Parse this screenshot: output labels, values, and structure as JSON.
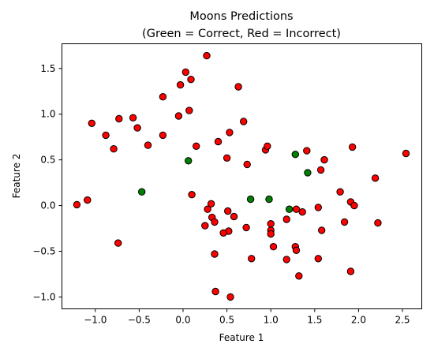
{
  "chart_data": {
    "type": "scatter",
    "title": "Moons Predictions",
    "subtitle": "(Green = Correct, Red = Incorrect)",
    "xlabel": "Feature 1",
    "ylabel": "Feature 2",
    "xlim": [
      -1.38,
      2.72
    ],
    "ylim": [
      -1.13,
      1.77
    ],
    "xticks": [
      -1.0,
      -0.5,
      0.0,
      0.5,
      1.0,
      1.5,
      2.0,
      2.5
    ],
    "xtick_labels": [
      "−1.0",
      "−0.5",
      "0.0",
      "0.5",
      "1.0",
      "1.5",
      "2.0",
      "2.5"
    ],
    "yticks": [
      -1.0,
      -0.5,
      0.0,
      0.5,
      1.0,
      1.5
    ],
    "ytick_labels": [
      "−1.0",
      "−0.5",
      "0.0",
      "0.5",
      "1.0",
      "1.5"
    ],
    "grid": false,
    "colors": {
      "correct": "#008000",
      "incorrect": "#ff0000",
      "edge": "#000000"
    },
    "series": [
      {
        "status": "correct",
        "color": "#008000",
        "points": [
          [
            -0.47,
            0.15
          ],
          [
            0.06,
            0.49
          ],
          [
            0.77,
            0.07
          ],
          [
            0.98,
            0.07
          ],
          [
            1.21,
            -0.04
          ],
          [
            1.28,
            0.56
          ],
          [
            1.42,
            0.36
          ]
        ]
      },
      {
        "status": "incorrect",
        "color": "#ff0000",
        "points": [
          [
            0.27,
            1.64
          ],
          [
            0.03,
            1.46
          ],
          [
            0.09,
            1.38
          ],
          [
            -0.03,
            1.32
          ],
          [
            0.63,
            1.3
          ],
          [
            -0.23,
            1.19
          ],
          [
            0.07,
            1.04
          ],
          [
            -0.05,
            0.98
          ],
          [
            -0.73,
            0.95
          ],
          [
            -0.57,
            0.96
          ],
          [
            -1.04,
            0.9
          ],
          [
            -0.52,
            0.85
          ],
          [
            -0.88,
            0.77
          ],
          [
            -0.23,
            0.77
          ],
          [
            0.69,
            0.92
          ],
          [
            0.53,
            0.8
          ],
          [
            -0.79,
            0.62
          ],
          [
            -0.4,
            0.66
          ],
          [
            0.15,
            0.65
          ],
          [
            0.4,
            0.7
          ],
          [
            0.5,
            0.52
          ],
          [
            0.73,
            0.45
          ],
          [
            0.94,
            0.61
          ],
          [
            0.96,
            0.65
          ],
          [
            1.41,
            0.6
          ],
          [
            1.61,
            0.5
          ],
          [
            1.93,
            0.64
          ],
          [
            2.54,
            0.57
          ],
          [
            1.57,
            0.39
          ],
          [
            2.19,
            0.3
          ],
          [
            1.79,
            0.15
          ],
          [
            -1.09,
            0.06
          ],
          [
            -1.21,
            0.01
          ],
          [
            0.1,
            0.12
          ],
          [
            0.32,
            0.02
          ],
          [
            0.28,
            -0.04
          ],
          [
            0.51,
            -0.06
          ],
          [
            0.58,
            -0.12
          ],
          [
            0.33,
            -0.13
          ],
          [
            0.36,
            -0.18
          ],
          [
            0.25,
            -0.22
          ],
          [
            0.72,
            -0.24
          ],
          [
            0.52,
            -0.28
          ],
          [
            0.46,
            -0.3
          ],
          [
            1.0,
            -0.2
          ],
          [
            1.0,
            -0.27
          ],
          [
            1.0,
            -0.31
          ],
          [
            1.29,
            -0.04
          ],
          [
            1.36,
            -0.07
          ],
          [
            1.54,
            -0.02
          ],
          [
            1.18,
            -0.15
          ],
          [
            1.91,
            0.04
          ],
          [
            1.95,
            0.0
          ],
          [
            1.84,
            -0.18
          ],
          [
            2.22,
            -0.19
          ],
          [
            1.58,
            -0.27
          ],
          [
            -0.74,
            -0.41
          ],
          [
            1.03,
            -0.45
          ],
          [
            1.28,
            -0.45
          ],
          [
            1.29,
            -0.49
          ],
          [
            0.36,
            -0.53
          ],
          [
            0.78,
            -0.58
          ],
          [
            1.18,
            -0.59
          ],
          [
            1.54,
            -0.58
          ],
          [
            1.91,
            -0.72
          ],
          [
            1.32,
            -0.77
          ],
          [
            0.37,
            -0.94
          ],
          [
            0.54,
            -1.0
          ]
        ]
      }
    ]
  }
}
